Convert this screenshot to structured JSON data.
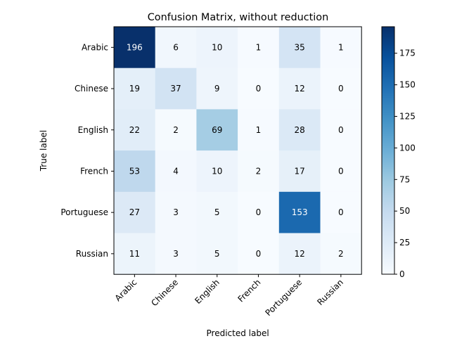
{
  "chart_data": {
    "type": "heatmap",
    "title": "Confusion Matrix, without reduction",
    "xlabel": "Predicted label",
    "ylabel": "True label",
    "x_categories": [
      "Arabic",
      "Chinese",
      "English",
      "French",
      "Portuguese",
      "Russian"
    ],
    "y_categories": [
      "Arabic",
      "Chinese",
      "English",
      "French",
      "Portuguese",
      "Russian"
    ],
    "values": [
      [
        196,
        6,
        10,
        1,
        35,
        1
      ],
      [
        19,
        37,
        9,
        0,
        12,
        0
      ],
      [
        22,
        2,
        69,
        1,
        28,
        0
      ],
      [
        53,
        4,
        10,
        2,
        17,
        0
      ],
      [
        27,
        3,
        5,
        0,
        153,
        0
      ],
      [
        11,
        3,
        5,
        0,
        12,
        2
      ]
    ],
    "colormap": "Blues",
    "colorbar": {
      "range": [
        0,
        196
      ],
      "ticks": [
        0,
        25,
        50,
        75,
        100,
        125,
        150,
        175
      ]
    },
    "x_tick_rotation": "45 degrees",
    "grid": false
  }
}
